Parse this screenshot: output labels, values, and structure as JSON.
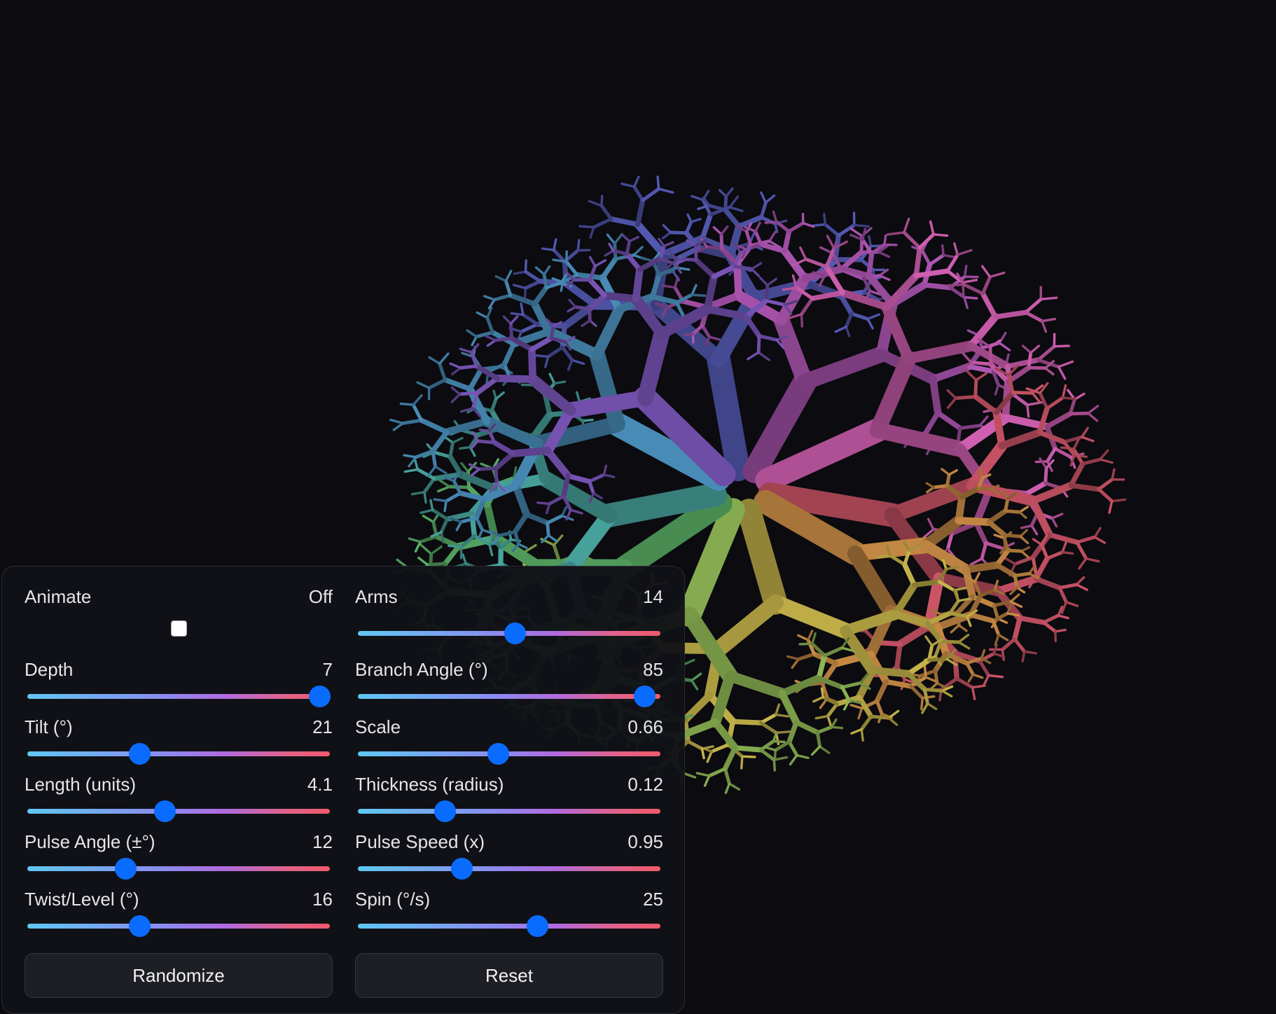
{
  "controls": {
    "animate": {
      "label": "Animate",
      "value": "Off",
      "checked": false
    },
    "arms": {
      "label": "Arms",
      "value": "14",
      "level": 0.52
    },
    "depth": {
      "label": "Depth",
      "value": "7",
      "level": 1.0
    },
    "branch_angle": {
      "label": "Branch Angle (°)",
      "value": "85",
      "level": 0.98
    },
    "tilt": {
      "label": "Tilt (°)",
      "value": "21",
      "level": 0.36
    },
    "scale": {
      "label": "Scale",
      "value": "0.66",
      "level": 0.46
    },
    "length": {
      "label": "Length (units)",
      "value": "4.1",
      "level": 0.45
    },
    "thickness": {
      "label": "Thickness (radius)",
      "value": "0.12",
      "level": 0.27
    },
    "pulse_angle": {
      "label": "Pulse Angle (±°)",
      "value": "12",
      "level": 0.31
    },
    "pulse_speed": {
      "label": "Pulse Speed (x)",
      "value": "0.95",
      "level": 0.33
    },
    "twist": {
      "label": "Twist/Level (°)",
      "value": "16",
      "level": 0.36
    },
    "spin": {
      "label": "Spin (°/s)",
      "value": "25",
      "level": 0.6
    }
  },
  "buttons": {
    "randomize": "Randomize",
    "reset": "Reset"
  },
  "scene": {
    "branch_colors": [
      "#4a4f9e",
      "#9a4c9e",
      "#b8549c",
      "#b34a5a",
      "#b07a3c",
      "#b0a042",
      "#7da04a",
      "#4f9a5a",
      "#3f8f8a",
      "#3f7aa0",
      "#6a4aa0"
    ]
  }
}
